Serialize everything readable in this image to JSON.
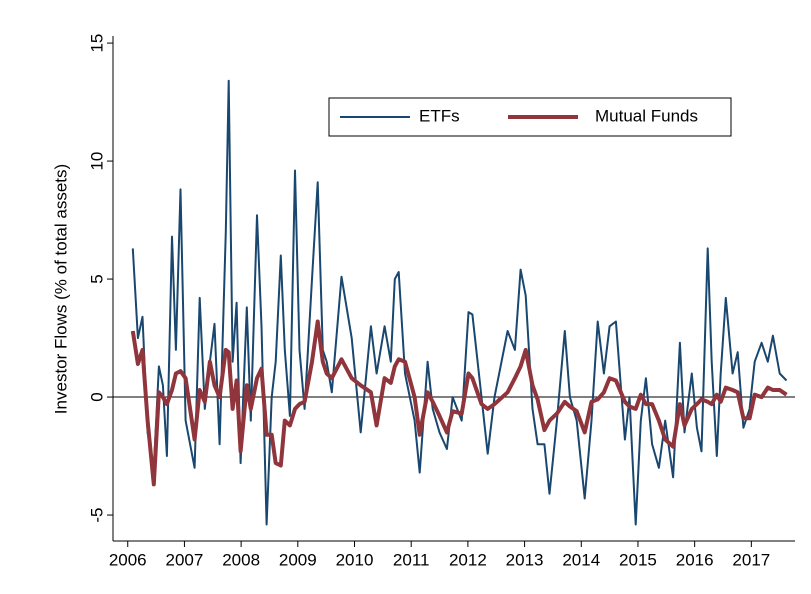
{
  "chart_data": {
    "type": "line",
    "y_label": "Investor Flows (% of total assets)",
    "xlim": [
      2005.74,
      2017.77
    ],
    "xticks": [
      2006,
      2007,
      2008,
      2009,
      2010,
      2011,
      2012,
      2013,
      2014,
      2015,
      2016,
      2017
    ],
    "ylim": [
      -6.1,
      15.3
    ],
    "yticks": [
      -5,
      0,
      5,
      10,
      15
    ],
    "yline": 0,
    "legend": "top",
    "x": [
      2006.09,
      2006.18,
      2006.26,
      2006.35,
      2006.46,
      2006.55,
      2006.62,
      2006.69,
      2006.78,
      2006.85,
      2006.93,
      2007.02,
      2007.18,
      2007.27,
      2007.36,
      2007.45,
      2007.53,
      2007.62,
      2007.73,
      2007.78,
      2007.85,
      2007.92,
      2007.99,
      2008.1,
      2008.17,
      2008.28,
      2008.36,
      2008.45,
      2008.54,
      2008.61,
      2008.7,
      2008.77,
      2008.86,
      2008.95,
      2009.03,
      2009.12,
      2009.25,
      2009.35,
      2009.44,
      2009.51,
      2009.6,
      2009.77,
      2009.95,
      2010.11,
      2010.29,
      2010.39,
      2010.53,
      2010.64,
      2010.71,
      2010.78,
      2010.89,
      2011.06,
      2011.15,
      2011.29,
      2011.38,
      2011.5,
      2011.63,
      2011.73,
      2011.89,
      2012.01,
      2012.08,
      2012.24,
      2012.35,
      2012.47,
      2012.7,
      2012.83,
      2012.93,
      2013.02,
      2013.14,
      2013.23,
      2013.35,
      2013.44,
      2013.57,
      2013.71,
      2013.8,
      2013.92,
      2014.06,
      2014.18,
      2014.29,
      2014.4,
      2014.5,
      2014.61,
      2014.77,
      2014.85,
      2014.96,
      2015.05,
      2015.14,
      2015.25,
      2015.37,
      2015.48,
      2015.62,
      2015.74,
      2015.82,
      2015.95,
      2016.04,
      2016.12,
      2016.23,
      2016.3,
      2016.39,
      2016.46,
      2016.55,
      2016.67,
      2016.76,
      2016.86,
      2016.97,
      2017.06,
      2017.18,
      2017.29,
      2017.38,
      2017.5,
      2017.62
    ],
    "series": [
      {
        "name": "ETFs",
        "color": "#1a476f",
        "width": 2,
        "values": [
          6.3,
          2.5,
          3.4,
          -1.5,
          -3.0,
          1.3,
          0.5,
          -2.5,
          6.8,
          2.0,
          8.8,
          -1.0,
          -3.0,
          4.2,
          -0.5,
          1.5,
          3.1,
          -2.0,
          7.0,
          13.4,
          1.5,
          4.0,
          -2.8,
          3.8,
          -1.0,
          7.7,
          3.0,
          -5.4,
          0.0,
          1.5,
          6.0,
          2.0,
          -0.8,
          9.6,
          2.0,
          -0.5,
          5.0,
          9.1,
          2.0,
          1.5,
          0.2,
          5.1,
          2.5,
          -1.5,
          3.0,
          1.0,
          3.0,
          1.5,
          5.0,
          5.3,
          1.0,
          -1.0,
          -3.2,
          1.5,
          -0.5,
          -1.5,
          -2.2,
          0.0,
          -1.0,
          3.6,
          3.5,
          0.0,
          -2.4,
          0.0,
          2.8,
          2.0,
          5.4,
          4.3,
          -0.5,
          -2.0,
          -2.0,
          -4.1,
          -1.0,
          2.8,
          0.0,
          -1.0,
          -4.3,
          -1.0,
          3.2,
          1.0,
          3.0,
          3.2,
          -1.8,
          0.0,
          -5.4,
          -1.0,
          0.8,
          -2.0,
          -3.0,
          -1.0,
          -3.4,
          2.3,
          -1.5,
          1.0,
          -1.3,
          -2.3,
          6.3,
          1.5,
          -2.5,
          1.0,
          4.2,
          1.0,
          1.9,
          -1.3,
          -0.5,
          1.5,
          2.3,
          1.5,
          2.6,
          1.0,
          0.7
        ]
      },
      {
        "name": "Mutual Funds",
        "color": "#90353b",
        "width": 4,
        "values": [
          2.8,
          1.4,
          2.0,
          -1.0,
          -3.7,
          0.2,
          0.0,
          -0.3,
          0.3,
          1.0,
          1.1,
          0.8,
          -1.8,
          0.3,
          -0.2,
          1.5,
          0.5,
          0.0,
          2.0,
          1.9,
          -0.5,
          0.7,
          -2.3,
          0.5,
          -0.5,
          0.8,
          1.2,
          -1.6,
          -1.6,
          -2.8,
          -2.9,
          -1.0,
          -1.2,
          -0.5,
          -0.3,
          -0.2,
          1.5,
          3.2,
          1.5,
          1.0,
          0.8,
          1.6,
          0.8,
          0.5,
          0.2,
          -1.2,
          0.8,
          0.6,
          1.3,
          1.6,
          1.5,
          0.0,
          -1.6,
          0.2,
          -0.2,
          -0.8,
          -1.5,
          -0.6,
          -0.7,
          1.0,
          0.8,
          -0.3,
          -0.5,
          -0.3,
          0.2,
          0.8,
          1.3,
          2.0,
          0.5,
          -0.1,
          -1.4,
          -1.0,
          -0.7,
          -0.2,
          -0.4,
          -0.6,
          -1.5,
          -0.2,
          -0.1,
          0.2,
          0.8,
          0.7,
          -0.2,
          -0.4,
          -0.5,
          0.1,
          -0.3,
          -0.3,
          -1.0,
          -1.8,
          -2.1,
          -0.3,
          -1.2,
          -0.5,
          -0.3,
          -0.1,
          -0.2,
          -0.3,
          0.1,
          -0.2,
          0.4,
          0.3,
          0.2,
          -0.9,
          -0.9,
          0.1,
          0.0,
          0.4,
          0.3,
          0.3,
          0.1
        ]
      }
    ]
  }
}
